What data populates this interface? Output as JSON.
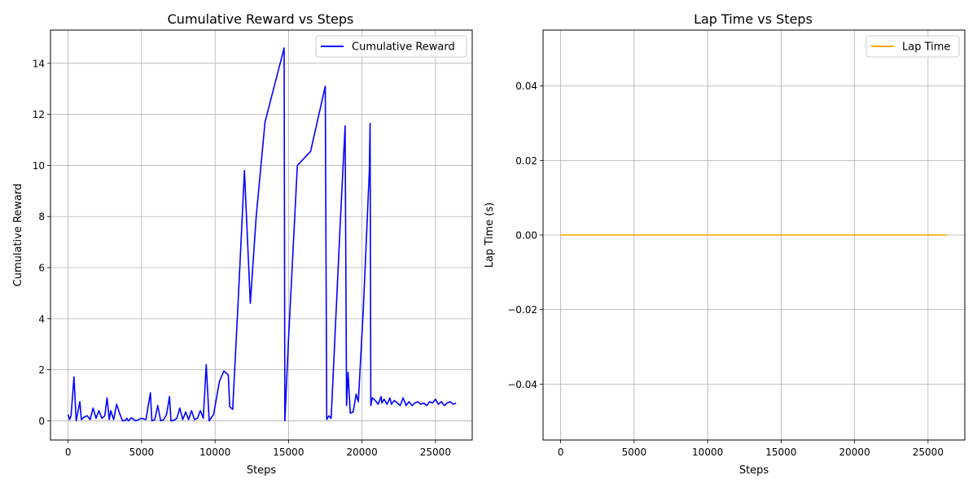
{
  "chart_data": [
    {
      "type": "line",
      "title": "Cumulative Reward vs Steps",
      "xlabel": "Steps",
      "ylabel": "Cumulative Reward",
      "xlim": [
        -1200,
        27500
      ],
      "ylim": [
        -0.75,
        15.3
      ],
      "xticks": [
        0,
        5000,
        10000,
        15000,
        20000,
        25000
      ],
      "yticks": [
        0,
        2,
        4,
        6,
        8,
        10,
        12,
        14
      ],
      "xtick_labels": [
        "0",
        "5000",
        "10000",
        "15000",
        "20000",
        "25000"
      ],
      "ytick_labels": [
        "0",
        "2",
        "4",
        "6",
        "8",
        "10",
        "12",
        "14"
      ],
      "grid": true,
      "legend": "upper right",
      "series": [
        {
          "name": "Cumulative Reward",
          "color": "#0000ff",
          "x": [
            0,
            100,
            200,
            400,
            550,
            800,
            900,
            1100,
            1300,
            1500,
            1700,
            1900,
            2100,
            2300,
            2500,
            2650,
            2800,
            2900,
            3100,
            3300,
            3500,
            3700,
            3900,
            4000,
            4100,
            4300,
            4600,
            4800,
            5000,
            5300,
            5600,
            5700,
            5900,
            6100,
            6300,
            6500,
            6700,
            6900,
            7000,
            7200,
            7400,
            7600,
            7800,
            8000,
            8200,
            8400,
            8600,
            8800,
            9000,
            9200,
            9400,
            9600,
            9900,
            10300,
            10600,
            10900,
            11000,
            11200,
            11600,
            12000,
            12400,
            12800,
            13400,
            14700,
            14750,
            15000,
            15600,
            16500,
            17500,
            17600,
            17750,
            17900,
            18500,
            18850,
            18950,
            19050,
            19200,
            19400,
            19600,
            19750,
            20100,
            20500,
            20550,
            20600,
            20700,
            20900,
            21100,
            21300,
            21350,
            21500,
            21700,
            21900,
            22000,
            22200,
            22400,
            22600,
            22800,
            23000,
            23200,
            23400,
            23600,
            23800,
            24000,
            24200,
            24400,
            24600,
            24800,
            25000,
            25200,
            25400,
            25600,
            25800,
            26000,
            26200,
            26400
          ],
          "y": [
            0.25,
            0.05,
            0.2,
            1.72,
            0.0,
            0.75,
            0.05,
            0.15,
            0.2,
            0.05,
            0.5,
            0.1,
            0.4,
            0.1,
            0.2,
            0.9,
            0.05,
            0.4,
            0.05,
            0.65,
            0.3,
            0.0,
            0.02,
            0.1,
            0.0,
            0.12,
            0.0,
            0.05,
            0.1,
            0.05,
            1.1,
            0.0,
            0.05,
            0.6,
            0.0,
            0.05,
            0.25,
            0.95,
            0.0,
            0.02,
            0.1,
            0.5,
            0.05,
            0.35,
            0.05,
            0.4,
            0.05,
            0.1,
            0.4,
            0.1,
            2.2,
            0.0,
            0.25,
            1.55,
            1.95,
            1.8,
            0.55,
            0.45,
            5.0,
            9.8,
            4.6,
            8.0,
            11.7,
            14.6,
            0.0,
            3.2,
            10.0,
            10.55,
            13.1,
            0.05,
            0.2,
            0.1,
            7.5,
            11.55,
            0.6,
            1.9,
            0.3,
            0.35,
            1.05,
            0.75,
            4.5,
            9.8,
            11.65,
            0.6,
            0.9,
            0.8,
            0.65,
            0.95,
            0.7,
            0.85,
            0.65,
            0.9,
            0.65,
            0.8,
            0.7,
            0.6,
            0.9,
            0.6,
            0.75,
            0.6,
            0.7,
            0.75,
            0.65,
            0.7,
            0.6,
            0.75,
            0.7,
            0.85,
            0.65,
            0.75,
            0.6,
            0.7,
            0.75,
            0.65,
            0.7
          ]
        }
      ]
    },
    {
      "type": "line",
      "title": "Lap Time vs Steps",
      "xlabel": "Steps",
      "ylabel": "Lap Time (s)",
      "xlim": [
        -1200,
        27500
      ],
      "ylim": [
        -0.055,
        0.055
      ],
      "xticks": [
        0,
        5000,
        10000,
        15000,
        20000,
        25000
      ],
      "yticks": [
        -0.04,
        -0.02,
        0.0,
        0.02,
        0.04
      ],
      "xtick_labels": [
        "0",
        "5000",
        "10000",
        "15000",
        "20000",
        "25000"
      ],
      "ytick_labels": [
        "−0.04",
        "−0.02",
        "0.00",
        "0.02",
        "0.04"
      ],
      "grid": true,
      "legend": "upper right",
      "series": [
        {
          "name": "Lap Time",
          "color": "#ffa500",
          "x": [
            0,
            26300
          ],
          "y": [
            0,
            0
          ]
        }
      ]
    }
  ]
}
